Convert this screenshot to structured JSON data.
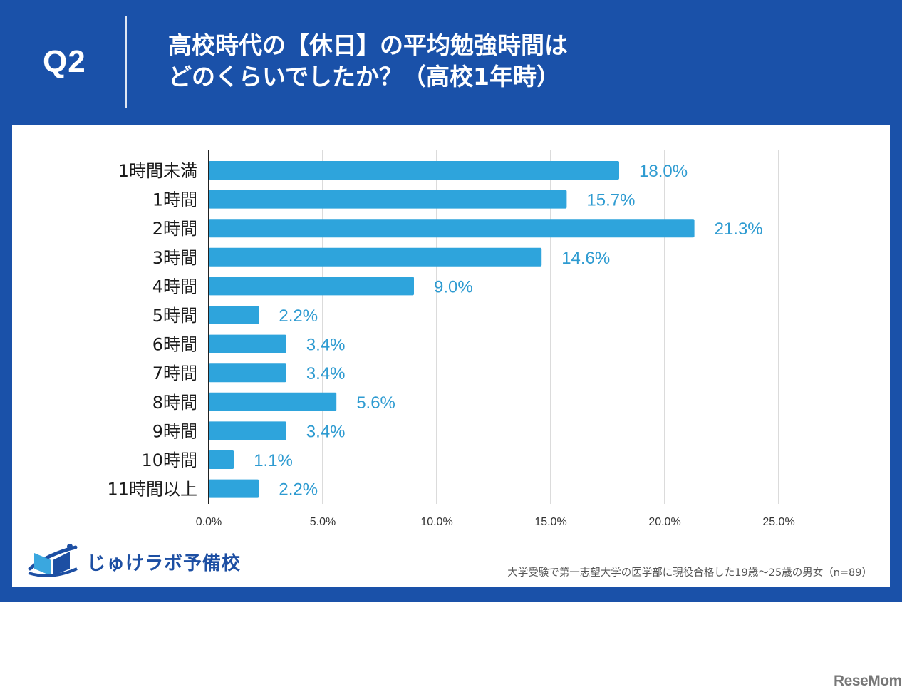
{
  "header": {
    "question_number": "Q2",
    "title_line1": "高校時代の【休日】の平均勉強時間は",
    "title_line2": "どのくらいでしたか？（高校1年時）"
  },
  "colors": {
    "banner": "#1a51a9",
    "bar": "#2ea4dc",
    "value_label": "#2e9bd1",
    "gridline": "#cfcfcf",
    "axis": "#222222"
  },
  "chart_data": {
    "type": "bar",
    "orientation": "horizontal",
    "title": "高校時代の【休日】の平均勉強時間はどのくらいでしたか？（高校1年時）",
    "categories": [
      "1時間未満",
      "1時間",
      "2時間",
      "3時間",
      "4時間",
      "5時間",
      "6時間",
      "7時間",
      "8時間",
      "9時間",
      "10時間",
      "11時間以上"
    ],
    "values": [
      18.0,
      15.7,
      21.3,
      14.6,
      9.0,
      2.2,
      3.4,
      3.4,
      5.6,
      3.4,
      1.1,
      2.2
    ],
    "value_labels": [
      "18.0%",
      "15.7%",
      "21.3%",
      "14.6%",
      "9.0%",
      "2.2%",
      "3.4%",
      "3.4%",
      "5.6%",
      "3.4%",
      "1.1%",
      "2.2%"
    ],
    "xlabel": "",
    "ylabel": "",
    "xlim": [
      0,
      25
    ],
    "xticks": [
      0,
      5,
      10,
      15,
      20,
      25
    ],
    "xtick_labels": [
      "0.0%",
      "5.0%",
      "10.0%",
      "15.0%",
      "20.0%",
      "25.0%"
    ],
    "grid": "vertical",
    "legend": "none",
    "unit": "%"
  },
  "footer": {
    "logo_text": "じゅけラボ予備校",
    "note": "大学受験で第一志望大学の医学部に現役合格した19歳〜25歳の男女（n=89）",
    "watermark": "ReseMom"
  }
}
